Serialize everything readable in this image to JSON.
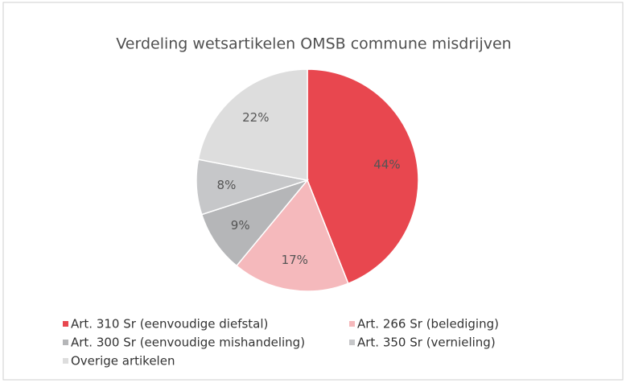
{
  "chart_data": {
    "type": "pie",
    "title": "Verdeling wetsartikelen OMSB commune misdrijven",
    "categories": [
      "Art. 310 Sr (eenvoudige diefstal)",
      "Art. 266 Sr (belediging)",
      "Art. 300 Sr (eenvoudige mishandeling)",
      "Art. 350 Sr (vernieling)",
      "Overige artikelen"
    ],
    "values": [
      44,
      17,
      9,
      8,
      22
    ],
    "value_labels": [
      "44%",
      "17%",
      "9%",
      "8%",
      "22%"
    ],
    "colors": [
      "#e8474f",
      "#f5b9bc",
      "#b5b6b8",
      "#c6c7c9",
      "#dddddd"
    ],
    "legend": "bottom"
  }
}
